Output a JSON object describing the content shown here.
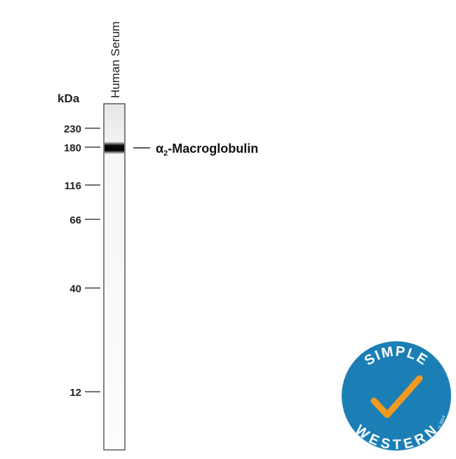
{
  "lane": {
    "label": "Human Serum"
  },
  "axis": {
    "unit": "kDa",
    "markers": [
      230,
      180,
      116,
      66,
      40,
      12
    ]
  },
  "band": {
    "prefix": "α",
    "subscript": "2",
    "suffix": "-Macroglobulin"
  },
  "logo": {
    "top": "SIMPLE",
    "bottom": "WESTERN",
    "copyright": "© 2014"
  }
}
